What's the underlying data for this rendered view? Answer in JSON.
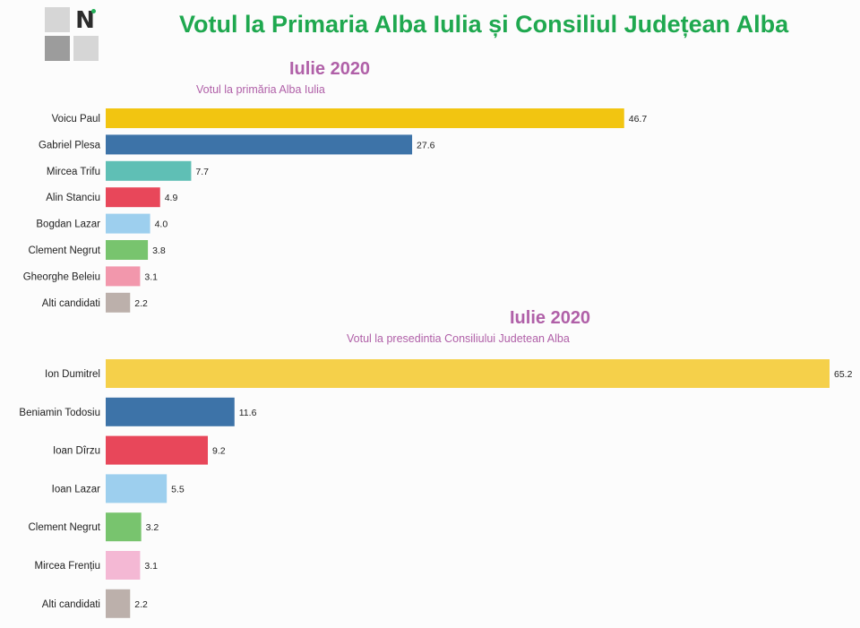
{
  "header": {
    "title": "Votul la  Primaria Alba Iulia și Consiliul Județean Alba"
  },
  "logo": {
    "letter": "N",
    "accent_color": "#26b15a"
  },
  "colors": {
    "title": "#1fa84f",
    "subtitle": "#b060a8"
  },
  "chart_data": [
    {
      "type": "bar",
      "orientation": "horizontal",
      "title": "Iulie 2020",
      "subtitle": "Votul la primăria Alba Iulia",
      "xlabel": "",
      "ylabel": "",
      "xlim": [
        0,
        65.2
      ],
      "grid": false,
      "categories": [
        "Voicu Paul",
        "Gabriel Plesa",
        "Mircea Trifu",
        "Alin Stanciu",
        "Bogdan Lazar",
        "Clement Negrut",
        "Gheorghe Beleiu",
        "Alti candidati"
      ],
      "values": [
        46.7,
        27.6,
        7.7,
        4.9,
        4.0,
        3.8,
        3.1,
        2.2
      ],
      "colors": [
        "#f2c511",
        "#3d73a8",
        "#5fbfb5",
        "#e8475a",
        "#9dcfee",
        "#78c46e",
        "#f297ac",
        "#bcb0ab"
      ]
    },
    {
      "type": "bar",
      "orientation": "horizontal",
      "title": "Iulie 2020",
      "subtitle": "Votul la presedintia Consiliului Judetean Alba",
      "xlabel": "",
      "ylabel": "",
      "xlim": [
        0,
        65.2
      ],
      "grid": false,
      "categories": [
        "Ion Dumitrel",
        "Beniamin Todosiu",
        "Ioan Dîrzu",
        "Ioan Lazar",
        "Clement Negrut",
        "Mircea Frențiu",
        "Alti candidati"
      ],
      "values": [
        65.2,
        11.6,
        9.2,
        5.5,
        3.2,
        3.1,
        2.2
      ],
      "colors": [
        "#f5d04a",
        "#3d73a8",
        "#e8475a",
        "#9dcfee",
        "#78c46e",
        "#f4b8d4",
        "#bcb0ab"
      ]
    }
  ]
}
